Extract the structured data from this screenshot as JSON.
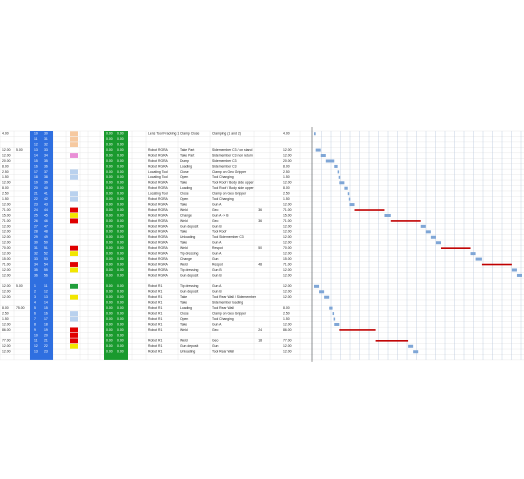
{
  "sheet": {
    "blocks": [
      {
        "rows": [
          {
            "a": "4.00",
            "n": [
              "10",
              "30"
            ],
            "c": "#f6c9a0",
            "g": [
              "0.00",
              "0.00"
            ],
            "res": "Lens Tool Fracking 1",
            "act": "Clamp Close",
            "desc": "Clamping (1 and 2)",
            "dur": {
              "value": 4,
              "label": "4.00"
            }
          },
          {
            "n": [
              "11",
              "31"
            ],
            "c": "#f6c9a0",
            "g": [
              "0.00",
              "0.00"
            ]
          },
          {
            "n": [
              "12",
              "32"
            ],
            "c": "#f6c9a0",
            "g": [
              "0.00",
              "0.00"
            ]
          },
          {
            "a": "12.00",
            "b": "5.00",
            "n": [
              "13",
              "33"
            ],
            "c": "#ffffff",
            "g": [
              "0.00",
              "0.00"
            ],
            "res": "Robot RGRA",
            "act": "Take Part",
            "desc": "Sidemember C3 / on stand",
            "dur": {
              "value": 12,
              "label": "12.00"
            }
          },
          {
            "a": "12.00",
            "n": [
              "14",
              "34"
            ],
            "c": "#e98fd6",
            "g": [
              "0.00",
              "0.00"
            ],
            "res": "Robot RGRA",
            "act": "Take Part",
            "desc": "Sidemember C3 non return",
            "dur": {
              "value": 12,
              "label": "12.00"
            }
          },
          {
            "a": "20.00",
            "n": [
              "15",
              "35"
            ],
            "c": "#ffffff",
            "g": [
              "0.00",
              "0.00"
            ],
            "res": "Robot RGRA",
            "act": "Dump",
            "desc": "Sidemember C3",
            "dur": {
              "value": 20,
              "label": "20.00"
            }
          },
          {
            "a": "8.00",
            "n": [
              "16",
              "36"
            ],
            "c": "#ffffff",
            "g": [
              "0.00",
              "0.00"
            ],
            "res": "Robot RGRA",
            "act": "Loading",
            "desc": "Sidemember C3",
            "dur": {
              "value": 8,
              "label": "8.00"
            }
          },
          {
            "a": "2.50",
            "n": [
              "17",
              "37"
            ],
            "c": "#b9d1ee",
            "g": [
              "0.00",
              "0.00"
            ],
            "res": "Locating Tool",
            "act": "Close",
            "desc": "Clamp on Geo Gripper",
            "dur": {
              "value": 2.5,
              "label": "2.50"
            }
          },
          {
            "a": "1.50",
            "n": [
              "18",
              "38"
            ],
            "c": "#b9d1ee",
            "g": [
              "0.00",
              "0.00"
            ],
            "res": "Locating Tool",
            "act": "Open",
            "desc": "Tool Changing",
            "dur": {
              "value": 1.5,
              "label": "1.50"
            }
          },
          {
            "a": "12.00",
            "n": [
              "19",
              "39"
            ],
            "c": "#ffffff",
            "g": [
              "0.00",
              "0.00"
            ],
            "res": "Robot RGRA",
            "act": "Take",
            "desc": "Tool Roof / Body side upper",
            "dur": {
              "value": 12,
              "label": "12.00"
            }
          },
          {
            "a": "8.00",
            "n": [
              "20",
              "40"
            ],
            "c": "#ffffff",
            "g": [
              "0.00",
              "0.00"
            ],
            "res": "Robot RGRA",
            "act": "Loading",
            "desc": "Tool Roof / Body side upper",
            "dur": {
              "value": 8,
              "label": "8.00"
            }
          },
          {
            "a": "2.50",
            "n": [
              "21",
              "41"
            ],
            "c": "#b9d1ee",
            "g": [
              "0.00",
              "0.00"
            ],
            "res": "Locating Tool",
            "act": "Close",
            "desc": "Clamp on Geo Gripper",
            "dur": {
              "value": 2.5,
              "label": "2.50"
            }
          },
          {
            "a": "1.50",
            "n": [
              "22",
              "42"
            ],
            "c": "#b9d1ee",
            "g": [
              "0.00",
              "0.00"
            ],
            "res": "Robot RGRA",
            "act": "Open",
            "desc": "Tool Changing",
            "dur": {
              "value": 1.5,
              "label": "1.50"
            }
          },
          {
            "a": "12.00",
            "n": [
              "23",
              "43"
            ],
            "c": "#ffffff",
            "g": [
              "0.00",
              "0.00"
            ],
            "res": "Robot RGRA",
            "act": "Take",
            "desc": "Gun A",
            "dur": {
              "value": 12,
              "label": "12.00"
            }
          },
          {
            "a": "71.00",
            "n": [
              "24",
              "44"
            ],
            "c": "#e00000",
            "g": [
              "0.00",
              "0.00"
            ],
            "res": "Robot RGRA",
            "act": "Weld",
            "desc": "Geo",
            "num": "36",
            "dur": {
              "value": 71,
              "label": "71.00"
            }
          },
          {
            "a": "15.00",
            "n": [
              "25",
              "45"
            ],
            "c": "#f2e600",
            "g": [
              "0.00",
              "0.00"
            ],
            "res": "Robot RGRA",
            "act": "Change",
            "desc": "Gun A -> B",
            "dur": {
              "value": 15,
              "label": "15.00"
            }
          },
          {
            "a": "71.00",
            "n": [
              "26",
              "46"
            ],
            "c": "#e00000",
            "g": [
              "0.00",
              "0.00"
            ],
            "res": "Robot RGRA",
            "act": "Weld",
            "desc": "Geo",
            "num": "36",
            "dur": {
              "value": 71,
              "label": "71.00"
            }
          },
          {
            "a": "12.00",
            "n": [
              "27",
              "47"
            ],
            "c": "#ffffff",
            "g": [
              "0.00",
              "0.00"
            ],
            "res": "Robot RGRA",
            "act": "Gun deposit",
            "desc": "Gun B",
            "dur": {
              "value": 12,
              "label": "12.00"
            }
          },
          {
            "a": "12.00",
            "n": [
              "28",
              "48"
            ],
            "c": "#ffffff",
            "g": [
              "0.00",
              "0.00"
            ],
            "res": "Robot RGRA",
            "act": "Take",
            "desc": "Tool Roof",
            "dur": {
              "value": 12,
              "label": "12.00"
            }
          },
          {
            "a": "12.00",
            "n": [
              "29",
              "49"
            ],
            "c": "#ffffff",
            "g": [
              "0.00",
              "0.00"
            ],
            "res": "Robot RGRA",
            "act": "Unloading",
            "desc": "Tool Sidemember C3",
            "dur": {
              "value": 12,
              "label": "12.00"
            }
          },
          {
            "a": "12.00",
            "n": [
              "30",
              "50"
            ],
            "c": "#ffffff",
            "g": [
              "0.00",
              "0.00"
            ],
            "res": "Robot RGRA",
            "act": "Take",
            "desc": "Gun A",
            "dur": {
              "value": 12,
              "label": "12.00"
            }
          },
          {
            "a": "70.00",
            "n": [
              "31",
              "51"
            ],
            "c": "#e00000",
            "g": [
              "0.00",
              "0.00"
            ],
            "res": "Robot RGRA",
            "act": "Weld",
            "desc": "Respot",
            "num": "50",
            "dur": {
              "value": 70,
              "label": "70.00"
            }
          },
          {
            "a": "12.00",
            "n": [
              "32",
              "52"
            ],
            "c": "#f2e600",
            "g": [
              "0.00",
              "0.00"
            ],
            "res": "Robot RGRA",
            "act": "Tip dressing",
            "desc": "Gun A",
            "dur": {
              "value": 12,
              "label": "12.00"
            }
          },
          {
            "a": "15.00",
            "n": [
              "33",
              "53"
            ],
            "c": "#ffffff",
            "g": [
              "0.00",
              "0.00"
            ],
            "res": "Robot RGRA",
            "act": "Change",
            "desc": "Gun",
            "dur": {
              "value": 15,
              "label": "15.00"
            }
          },
          {
            "a": "71.00",
            "n": [
              "34",
              "54"
            ],
            "c": "#e00000",
            "g": [
              "0.00",
              "0.00"
            ],
            "res": "Robot RGRA",
            "act": "Weld",
            "desc": "Respot",
            "num": "48",
            "dur": {
              "value": 71,
              "label": "71.00"
            }
          },
          {
            "a": "12.00",
            "n": [
              "35",
              "55"
            ],
            "c": "#f2e600",
            "g": [
              "0.00",
              "0.00"
            ],
            "res": "Robot RGRA",
            "act": "Tip dressing",
            "desc": "Gun B",
            "dur": {
              "value": 12,
              "label": "12.00"
            }
          },
          {
            "a": "12.00",
            "n": [
              "36",
              "56"
            ],
            "c": "#ffffff",
            "g": [
              "0.00",
              "0.00"
            ],
            "res": "Robot RGRA",
            "act": "Gun deposit",
            "desc": "Gun B",
            "dur": {
              "value": 12,
              "label": "12.00"
            }
          }
        ]
      },
      {
        "rows": [
          {
            "a": "12.00",
            "b": "5.00",
            "n": [
              "1",
              "11"
            ],
            "c": "#1f9e3a",
            "g": [
              "0.00",
              "0.00"
            ],
            "res": "Robot R1",
            "act": "Tip dressing",
            "desc": "Gun A",
            "dur": {
              "value": 12,
              "label": "12.00"
            }
          },
          {
            "a": "12.00",
            "n": [
              "2",
              "12"
            ],
            "c": "#ffffff",
            "g": [
              "0.00",
              "0.00"
            ],
            "res": "Robot R1",
            "act": "Gun deposit",
            "desc": "Gun B",
            "dur": {
              "value": 12,
              "label": "12.00"
            }
          },
          {
            "a": "12.00",
            "n": [
              "3",
              "13"
            ],
            "c": "#f2e600",
            "g": [
              "0.00",
              "0.00"
            ],
            "res": "Robot R1",
            "act": "Take",
            "desc": "Tool Rear Wall / Sidemember",
            "dur": {
              "value": 12,
              "label": "12.00"
            }
          },
          {
            "n": [
              "4",
              "14"
            ],
            "c": "#ffffff",
            "g": [
              "0.00",
              "0.00"
            ],
            "res": "Robot R1",
            "act": "Take",
            "desc": "Sidemember loading"
          },
          {
            "a": "8.00",
            "b": "75.00",
            "n": [
              "5",
              "15"
            ],
            "c": "#ffffff",
            "g": [
              "0.00",
              "0.00"
            ],
            "res": "Robot R1",
            "act": "Loading",
            "desc": "Tool Rear Wall",
            "dur": {
              "value": 8,
              "label": "8.00"
            }
          },
          {
            "a": "2.50",
            "n": [
              "6",
              "16"
            ],
            "c": "#b9d1ee",
            "g": [
              "0.00",
              "0.00"
            ],
            "res": "Robot R1",
            "act": "Close",
            "desc": "Clamp on Geo Gripper",
            "dur": {
              "value": 2.5,
              "label": "2.50"
            }
          },
          {
            "a": "1.50",
            "n": [
              "7",
              "17"
            ],
            "c": "#b9d1ee",
            "g": [
              "0.00",
              "0.00"
            ],
            "res": "Robot R1",
            "act": "Open",
            "desc": "Tool Changing",
            "dur": {
              "value": 1.5,
              "label": "1.50"
            }
          },
          {
            "a": "12.00",
            "n": [
              "8",
              "18"
            ],
            "c": "#ffffff",
            "g": [
              "0.00",
              "0.00"
            ],
            "res": "Robot R1",
            "act": "Take",
            "desc": "Gun A",
            "dur": {
              "value": 12,
              "label": "12.00"
            }
          },
          {
            "a": "86.00",
            "n": [
              "9",
              "19"
            ],
            "c": "#e00000",
            "g": [
              "0.00",
              "0.00"
            ],
            "res": "Robot R1",
            "act": "Weld",
            "desc": "Geo",
            "num": "24",
            "dur": {
              "value": 86,
              "label": "86.00"
            }
          },
          {
            "n": [
              "10",
              "20"
            ],
            "c": "#e00000",
            "g": [
              "0.00",
              "0.00"
            ]
          },
          {
            "a": "77.00",
            "n": [
              "11",
              "21"
            ],
            "c": "#e00000",
            "g": [
              "0.00",
              "0.00"
            ],
            "res": "Robot R1",
            "act": "Weld",
            "desc": "Geo",
            "num": "18",
            "dur": {
              "value": 77,
              "label": "77.00"
            }
          },
          {
            "a": "12.00",
            "n": [
              "12",
              "22"
            ],
            "c": "#f2e600",
            "g": [
              "0.00",
              "0.00"
            ],
            "res": "Robot R1",
            "act": "Gun deposit",
            "desc": "Gun",
            "dur": {
              "value": 12,
              "label": "12.00"
            }
          },
          {
            "a": "12.00",
            "n": [
              "13",
              "23"
            ],
            "c": "#ffffff",
            "g": [
              "0.00",
              "0.00"
            ],
            "res": "Robot R1",
            "act": "Unloading",
            "desc": "Tool Rear Wall",
            "dur": {
              "value": 12,
              "label": "12.00"
            }
          }
        ]
      }
    ]
  }
}
